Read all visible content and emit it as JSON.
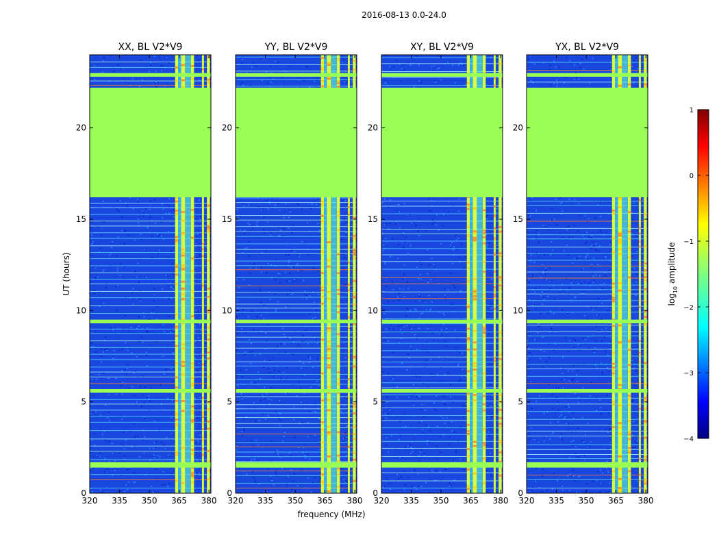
{
  "chart_data": {
    "type": "heatmap",
    "suptitle": "2016-08-13 0.0-24.0",
    "xlabel": "frequency (MHz)",
    "ylabel": "UT (hours)",
    "xlim": [
      320,
      381
    ],
    "ylim": [
      0,
      24
    ],
    "xticks": [
      320,
      335,
      350,
      365,
      380
    ],
    "yticks": [
      0,
      5,
      10,
      15,
      20
    ],
    "panels": [
      {
        "title": "XX, BL V2*V9",
        "strongest_band": [
          363,
          373
        ]
      },
      {
        "title": "YY, BL V2*V9",
        "strongest_band": [
          361,
          377
        ]
      },
      {
        "title": "XY, BL V2*V9",
        "strongest_band": [
          364,
          374
        ]
      },
      {
        "title": "YX, BL V2*V9",
        "strongest_band": [
          361,
          370
        ]
      }
    ],
    "flagged_rows_ut": [
      {
        "from": 16.2,
        "to": 22.2
      },
      {
        "from": 1.4,
        "to": 1.7
      },
      {
        "from": 5.5,
        "to": 5.7
      },
      {
        "from": 9.3,
        "to": 9.5
      },
      {
        "from": 22.8,
        "to": 23.0
      }
    ],
    "rfi_bands_mhz": [
      {
        "from": 363,
        "to": 364.5
      },
      {
        "from": 366,
        "to": 368
      },
      {
        "from": 371,
        "to": 372.5
      },
      {
        "from": 376.5,
        "to": 377.5
      },
      {
        "from": 379,
        "to": 380.5
      }
    ],
    "colorbar": {
      "label": "log10 amplitude",
      "label_main": "log",
      "label_sub": "10",
      "label_rest": " amplitude",
      "range": [
        -4,
        1
      ],
      "ticks": [
        1,
        0,
        -1,
        -2,
        -3,
        -4
      ],
      "tick_labels": [
        "1",
        "0",
        "−1",
        "−2",
        "−3",
        "−4"
      ],
      "colormap": "jet"
    }
  }
}
